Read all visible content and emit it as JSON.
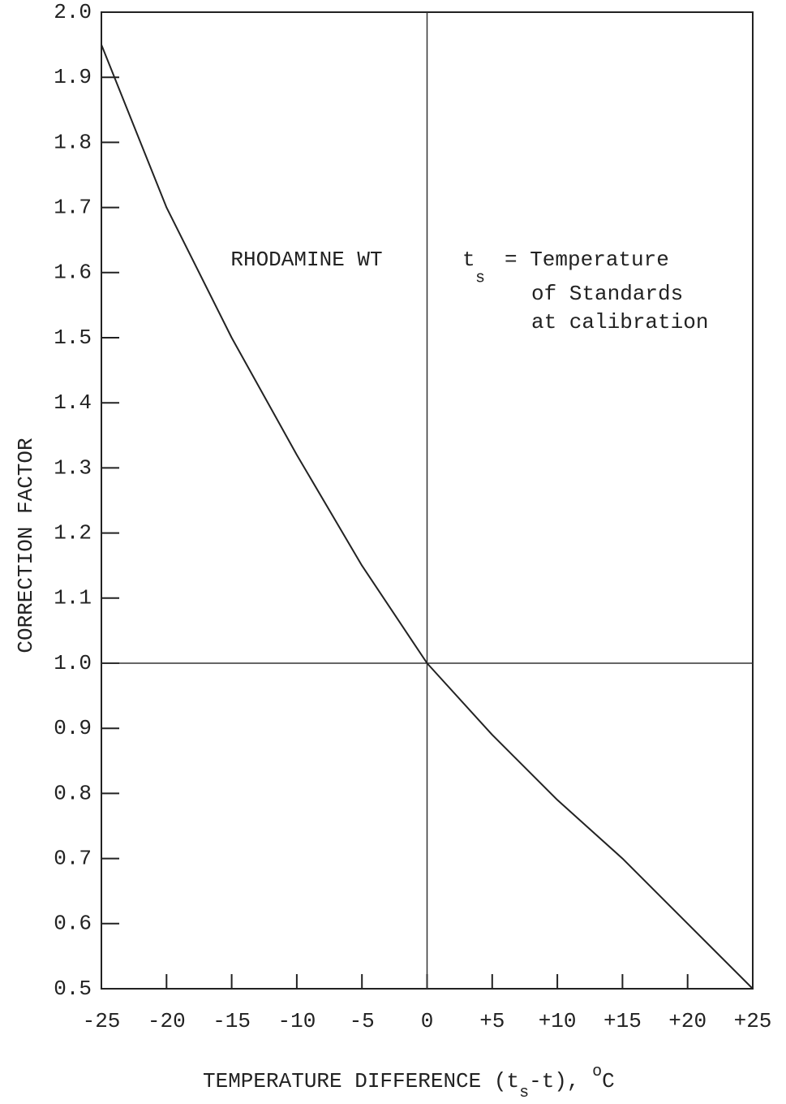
{
  "chart_data": {
    "type": "line",
    "y_label": "CORRECTION FACTOR",
    "x_label": {
      "text": "TEMPERATURE DIFFERENCE (t",
      "sub": "s",
      "rest": "-t), ",
      "sup": "o",
      "unit": "C"
    },
    "annotations": {
      "dye": "RHODAMINE WT",
      "symbol": "t",
      "symbol_sub": "s",
      "line1": "= Temperature",
      "line2": "of Standards",
      "line3": "at calibration"
    },
    "x": [
      -25,
      -20,
      -15,
      -10,
      -5,
      0,
      5,
      10,
      15,
      20,
      25
    ],
    "values": [
      1.95,
      1.7,
      1.5,
      1.32,
      1.15,
      1.0,
      0.89,
      0.79,
      0.7,
      0.6,
      0.5
    ],
    "color": "#222222",
    "xlim": [
      -25,
      25
    ],
    "ylim": [
      0.5,
      2.0
    ],
    "xticks": [
      -25,
      -20,
      -15,
      -10,
      -5,
      0,
      {
        "value": 5,
        "label": "+5"
      },
      {
        "value": 10,
        "label": "+10"
      },
      {
        "value": 15,
        "label": "+15"
      },
      {
        "value": 20,
        "label": "+20"
      },
      {
        "value": 25,
        "label": "+25"
      }
    ],
    "yticks": [
      0.5,
      0.6,
      0.7,
      0.8,
      0.9,
      {
        "value": 1.0,
        "label": "1.0"
      },
      1.1,
      1.2,
      1.3,
      1.4,
      1.5,
      1.6,
      1.7,
      1.8,
      1.9,
      {
        "value": 2.0,
        "label": "2.0"
      }
    ],
    "reference_lines": {
      "x": 0,
      "y": 1.0
    }
  }
}
